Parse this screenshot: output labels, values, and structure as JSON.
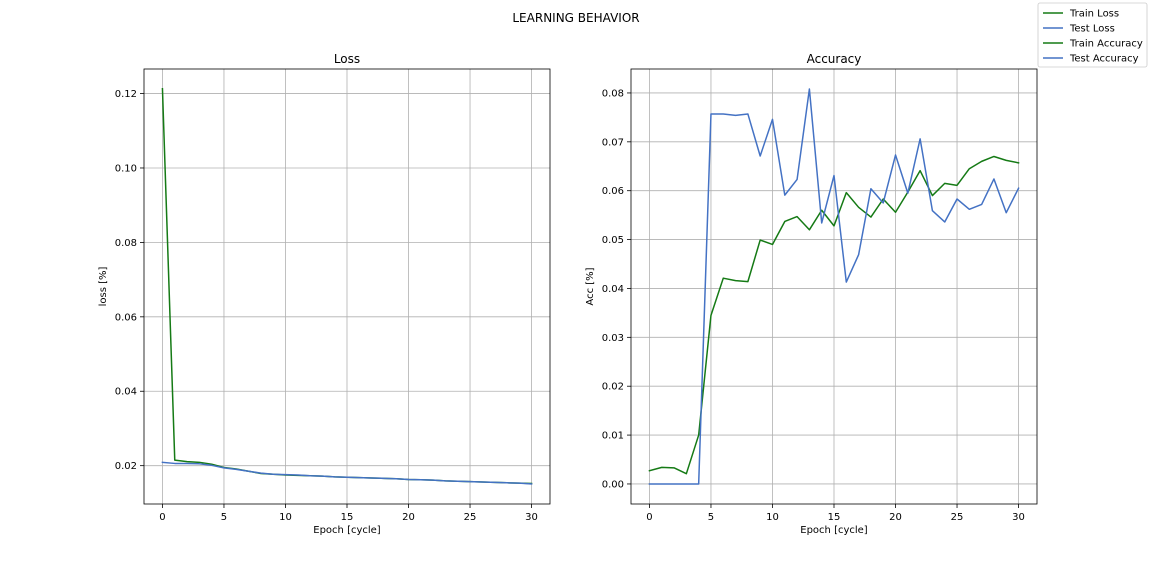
{
  "figure": {
    "title": "LEARNING BEHAVIOR"
  },
  "legend": {
    "placement": "top-right",
    "entries": [
      {
        "label": "Train Loss",
        "color": "#157a15"
      },
      {
        "label": "Test Loss",
        "color": "#4472c4"
      },
      {
        "label": "Train Accuracy",
        "color": "#157a15"
      },
      {
        "label": "Test Accuracy",
        "color": "#4472c4"
      }
    ]
  },
  "chart_data": [
    {
      "type": "line",
      "title": "Loss",
      "xlabel": "Epoch [cycle]",
      "ylabel": "loss [%]",
      "xlim": [
        -1.5,
        31.5
      ],
      "ylim": [
        0.0097,
        0.1266
      ],
      "xticks": [
        0,
        5,
        10,
        15,
        20,
        25,
        30
      ],
      "yticks": [
        0.02,
        0.04,
        0.06,
        0.08,
        0.1,
        0.12
      ],
      "ytick_labels": [
        "0.02",
        "0.04",
        "0.06",
        "0.08",
        "0.10",
        "0.12"
      ],
      "grid": true,
      "x": [
        0,
        1,
        2,
        3,
        4,
        5,
        6,
        7,
        8,
        9,
        10,
        11,
        12,
        13,
        14,
        15,
        16,
        17,
        18,
        19,
        20,
        21,
        22,
        23,
        24,
        25,
        26,
        27,
        28,
        29,
        30
      ],
      "series": [
        {
          "name": "Train Loss",
          "color": "#157a15",
          "values": [
            0.1213,
            0.0215,
            0.0211,
            0.0209,
            0.0204,
            0.0195,
            0.0191,
            0.0185,
            0.0179,
            0.0177,
            0.0175,
            0.0174,
            0.0173,
            0.0172,
            0.017,
            0.0169,
            0.0168,
            0.0167,
            0.0166,
            0.0165,
            0.0163,
            0.0162,
            0.0161,
            0.0159,
            0.0158,
            0.0157,
            0.0156,
            0.0155,
            0.0154,
            0.0153,
            0.0152
          ]
        },
        {
          "name": "Test Loss",
          "color": "#4472c4",
          "values": [
            0.0209,
            0.0206,
            0.0206,
            0.0205,
            0.0201,
            0.0194,
            0.019,
            0.0185,
            0.018,
            0.0177,
            0.0176,
            0.0175,
            0.0173,
            0.0172,
            0.017,
            0.0169,
            0.0168,
            0.0167,
            0.0166,
            0.0165,
            0.0163,
            0.0162,
            0.0161,
            0.0159,
            0.0158,
            0.0157,
            0.0156,
            0.0155,
            0.0154,
            0.0153,
            0.0151
          ]
        }
      ]
    },
    {
      "type": "line",
      "title": "Accuracy",
      "xlabel": "Epoch [cycle]",
      "ylabel": "Acc [%]",
      "xlim": [
        -1.5,
        31.5
      ],
      "ylim": [
        -0.0041,
        0.0849
      ],
      "xticks": [
        0,
        5,
        10,
        15,
        20,
        25,
        30
      ],
      "yticks": [
        0.0,
        0.01,
        0.02,
        0.03,
        0.04,
        0.05,
        0.06,
        0.07,
        0.08
      ],
      "ytick_labels": [
        "0.00",
        "0.01",
        "0.02",
        "0.03",
        "0.04",
        "0.05",
        "0.06",
        "0.07",
        "0.08"
      ],
      "grid": true,
      "x": [
        0,
        1,
        2,
        3,
        4,
        5,
        6,
        7,
        8,
        9,
        10,
        11,
        12,
        13,
        14,
        15,
        16,
        17,
        18,
        19,
        20,
        21,
        22,
        23,
        24,
        25,
        26,
        27,
        28,
        29,
        30
      ],
      "series": [
        {
          "name": "Train Accuracy",
          "color": "#157a15",
          "values": [
            0.0027,
            0.0034,
            0.0033,
            0.0021,
            0.01,
            0.0345,
            0.0421,
            0.0416,
            0.0414,
            0.0499,
            0.049,
            0.0537,
            0.0547,
            0.052,
            0.056,
            0.0528,
            0.0596,
            0.0566,
            0.0546,
            0.0583,
            0.0556,
            0.0597,
            0.0641,
            0.059,
            0.0615,
            0.0611,
            0.0645,
            0.066,
            0.067,
            0.0662,
            0.0657
          ]
        },
        {
          "name": "Test Accuracy",
          "color": "#4472c4",
          "values": [
            0.0,
            0.0,
            0.0,
            0.0,
            0.0,
            0.0757,
            0.0757,
            0.0754,
            0.0757,
            0.0671,
            0.0746,
            0.0591,
            0.0623,
            0.0808,
            0.0534,
            0.0631,
            0.0413,
            0.0469,
            0.0604,
            0.0575,
            0.0673,
            0.0595,
            0.0706,
            0.0559,
            0.0536,
            0.0583,
            0.0562,
            0.0572,
            0.0624,
            0.0555,
            0.0605
          ]
        }
      ]
    }
  ]
}
